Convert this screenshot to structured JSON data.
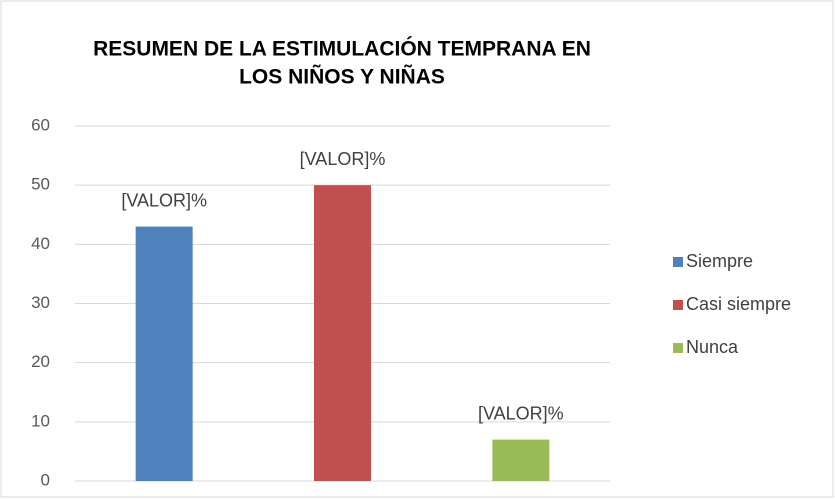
{
  "chart_data": {
    "type": "bar",
    "title": [
      "RESUMEN DE LA ESTIMULACIÓN TEMPRANA EN",
      "LOS NIÑOS Y NIÑAS"
    ],
    "categories": [
      null
    ],
    "series": [
      {
        "name": "Siempre",
        "color": "#4f81bd",
        "values": [
          43
        ],
        "value_labels": [
          "[VALOR]%"
        ]
      },
      {
        "name": "Casi siempre",
        "color": "#c0504d",
        "values": [
          50
        ],
        "value_labels": [
          "[VALOR]%"
        ]
      },
      {
        "name": "Nunca",
        "color": "#9bbb59",
        "values": [
          7
        ],
        "value_labels": [
          "[VALOR]%"
        ]
      }
    ],
    "ylim": [
      0,
      60
    ],
    "yticks": [
      0,
      10,
      20,
      30,
      40,
      50,
      60
    ],
    "grid": true,
    "legend": "right"
  }
}
